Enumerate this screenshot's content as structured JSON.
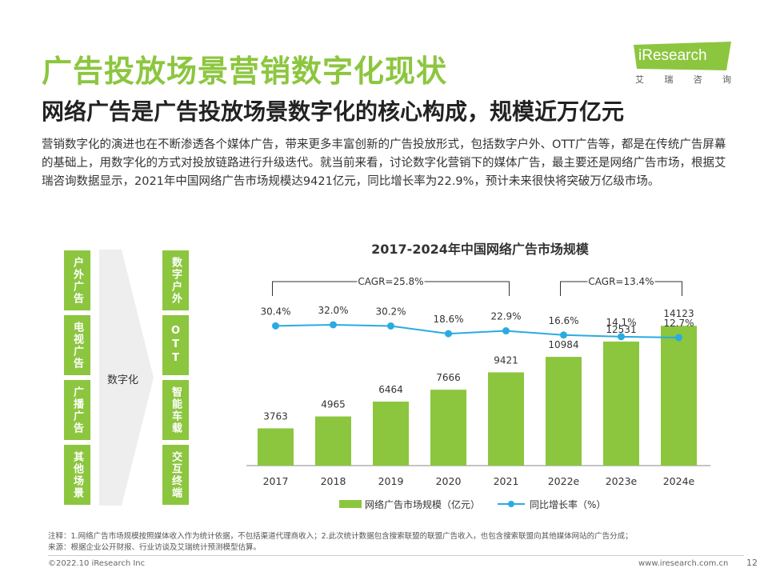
{
  "header": {
    "title": "广告投放场景营销数字化现状",
    "subtitle": "网络广告是广告投放场景数字化的核心构成，规模近万亿元"
  },
  "logo": {
    "text": "iResearch",
    "cn_chars": [
      "艾",
      "瑞",
      "咨",
      "询"
    ]
  },
  "body_text": "营销数字化的演进也在不断渗透各个媒体广告，带来更多丰富创新的广告投放形式，包括数字户外、OTT广告等，都是在传统广告屏幕的基础上，用数字化的方式对投放链路进行升级迭代。就当前来看，讨论数字化营销下的媒体广告，最主要还是网络广告市场，根据艾瑞咨询数据显示，2021年中国网络广告市场规模达9421亿元，同比增长率为22.9%，预计未来很快将突破万亿级市场。",
  "flow": {
    "left": [
      "户外广告",
      "电视广告",
      "广播广告",
      "其他场景"
    ],
    "arrow_label": "数字化",
    "right": [
      "数字户外",
      "OTT",
      "智能车载",
      "交互终端"
    ]
  },
  "chart_data": {
    "type": "bar",
    "title": "2017-2024年中国网络广告市场规模",
    "categories": [
      "2017",
      "2018",
      "2019",
      "2020",
      "2021",
      "2022e",
      "2023e",
      "2024e"
    ],
    "series": [
      {
        "name": "网络广告市场规模（亿元）",
        "type": "bar",
        "values": [
          3763,
          4965,
          6464,
          7666,
          9421,
          10984,
          12531,
          14123
        ]
      },
      {
        "name": "同比增长率（%）",
        "type": "line",
        "values": [
          30.4,
          32.0,
          30.2,
          18.6,
          22.9,
          16.6,
          14.1,
          12.7
        ]
      }
    ],
    "bar_labels": [
      "3763",
      "4965",
      "6464",
      "7666",
      "9421",
      "10984",
      "12531",
      "14123"
    ],
    "line_labels": [
      "30.4%",
      "32.0%",
      "30.2%",
      "18.6%",
      "22.9%",
      "16.6%",
      "14.1%",
      "12.7%"
    ],
    "annotations": [
      {
        "text": "CAGR=25.8%",
        "from": "2017",
        "to": "2021"
      },
      {
        "text": "CAGR=13.4%",
        "from": "2022e",
        "to": "2024e"
      }
    ],
    "bar_ylim": [
      0,
      16000
    ],
    "legend_placement": "bottom",
    "grid": false,
    "colors": {
      "bar": "#8cc63f",
      "line": "#29abe2"
    }
  },
  "footnote": {
    "note": "注释：1.网络广告市场规模按照媒体收入作为统计依据，不包括渠道代理商收入；2.此次统计数据包含搜索联盟的联盟广告收入，也包含搜索联盟向其他媒体网站的广告分成；",
    "source": "来源：根据企业公开财报、行业访谈及艾瑞统计预测模型估算。"
  },
  "footer": {
    "copyright": "©2022.10 iResearch Inc",
    "url": "www.iresearch.com.cn",
    "page": "12"
  },
  "colors": {
    "accent": "#8cc63f",
    "line": "#29abe2",
    "arrow": "#eeeeee"
  }
}
